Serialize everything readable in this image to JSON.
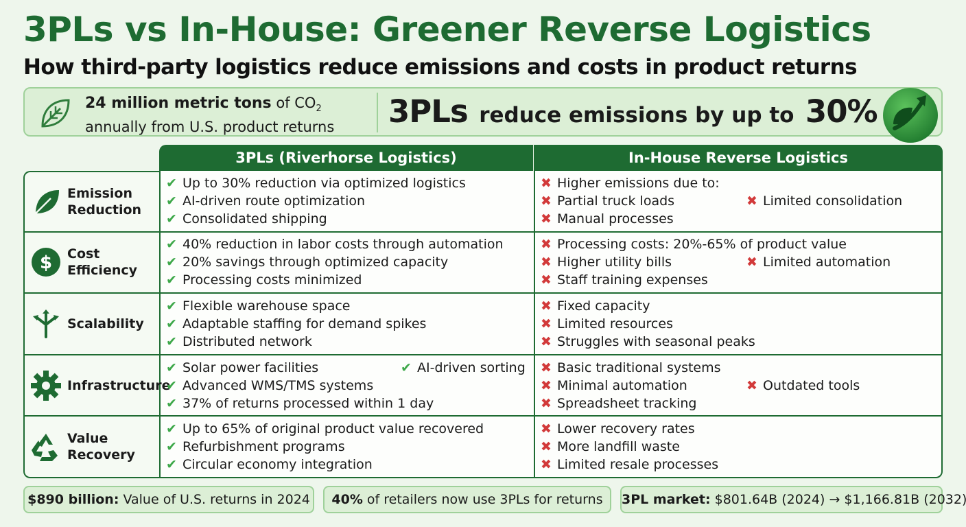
{
  "header": {
    "title": "3PLs vs In-House: Greener Reverse Logistics",
    "subtitle": "How third-party logistics reduce emissions and costs in product returns"
  },
  "banner": {
    "left_bold": "24 million metric tons",
    "left_of": "of",
    "left_co": "CO",
    "left_sub": "2",
    "left_line2": "annually from U.S. product returns",
    "right_big": "3PLs",
    "right_mid": "reduce emissions by up to",
    "right_pct": "30%"
  },
  "table": {
    "col_3pl": "3PLs (Riverhorse Logistics)",
    "col_inhouse": "In-House Reverse Logistics",
    "rows": [
      {
        "label": "Emission\nReduction",
        "icon": "leaf-icon",
        "pros": [
          "Up to 30% reduction via optimized logistics",
          "AI-driven route optimization",
          "Consolidated shipping"
        ],
        "pros_side": "",
        "cons": [
          "Higher emissions due to:",
          "Partial truck loads",
          "Manual processes"
        ],
        "cons_side": "Limited consolidation"
      },
      {
        "label": "Cost\nEfficiency",
        "icon": "dollar-icon",
        "pros": [
          "40% reduction in labor costs through automation",
          "20% savings through optimized capacity",
          "Processing costs minimized"
        ],
        "pros_side": "",
        "cons": [
          "Processing costs: 20%-65% of product value",
          "Higher utility bills",
          "Staff training expenses"
        ],
        "cons_side": "Limited automation"
      },
      {
        "label": "Scalability",
        "icon": "split-arrows-icon",
        "pros": [
          "Flexible warehouse space",
          "Adaptable staffing for demand spikes",
          "Distributed network"
        ],
        "pros_side": "",
        "cons": [
          "Fixed capacity",
          "Limited resources",
          "Struggles with seasonal peaks"
        ],
        "cons_side": ""
      },
      {
        "label": "Infrastructure",
        "icon": "gear-icon",
        "pros": [
          "Solar power facilities",
          "Advanced WMS/TMS systems",
          "37% of returns processed within 1 day"
        ],
        "pros_side": "AI-driven sorting",
        "cons": [
          "Basic traditional systems",
          "Minimal automation",
          "Spreadsheet tracking"
        ],
        "cons_side": "Outdated tools"
      },
      {
        "label": "Value\nRecovery",
        "icon": "recycle-icon",
        "pros": [
          "Up to 65% of original product value recovered",
          "Refurbishment programs",
          "Circular economy integration"
        ],
        "pros_side": "",
        "cons": [
          "Lower recovery rates",
          "More landfill waste",
          "Limited resale processes"
        ],
        "cons_side": ""
      }
    ]
  },
  "footer": {
    "f1_bold": "$890 billion:",
    "f1_text": "Value of U.S. returns in 2024",
    "f2_bold": "40%",
    "f2_text": "of retailers now use 3PLs for returns",
    "f3_bold": "3PL market:",
    "f3_text": "$801.64B (2024) → $1,166.81B (2032)"
  },
  "colors": {
    "brand_green": "#1e6b32",
    "check_green": "#3ea84a",
    "cross_red": "#d23a3a",
    "panel_bg": "#dcefd6"
  },
  "marks": {
    "check": "✔",
    "cross": "✖"
  }
}
